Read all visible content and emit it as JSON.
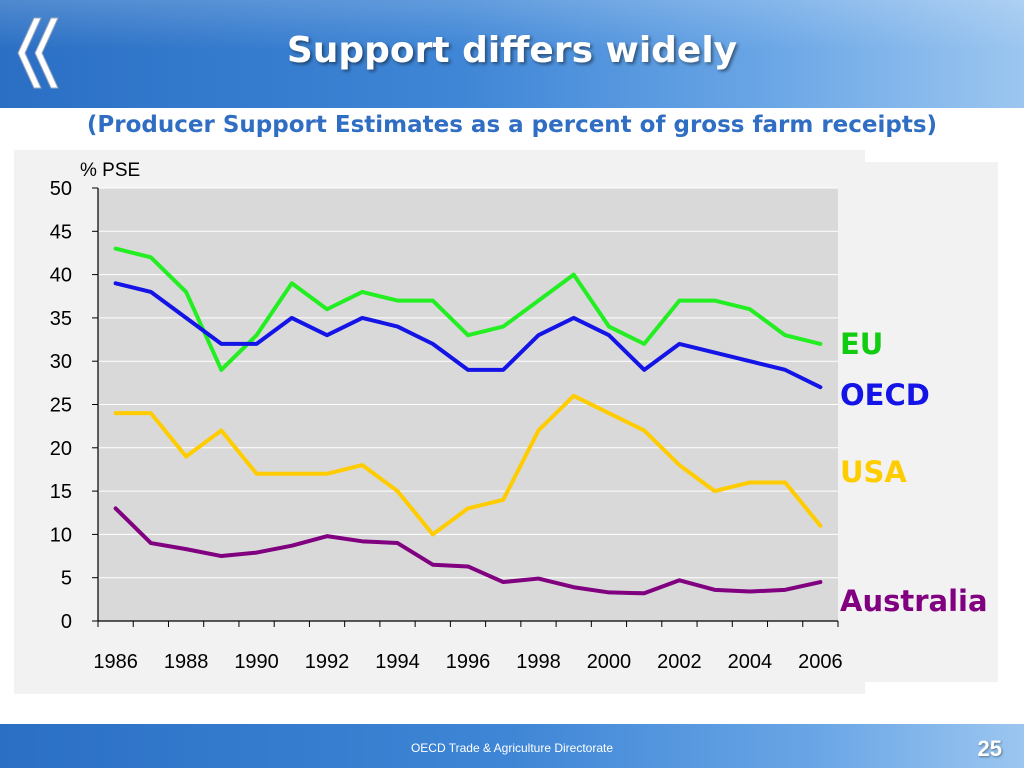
{
  "header": {
    "title": "Support differs widely",
    "subtitle": "(Producer Support Estimates as a percent of gross farm receipts)",
    "logo": "oecd-chevrons-logo"
  },
  "footer": {
    "text": "OECD Trade & Agriculture Directorate",
    "page_number": "25"
  },
  "chart_data": {
    "type": "line",
    "title": "",
    "xlabel": "",
    "ylabel": "% PSE",
    "x": [
      1986,
      1987,
      1988,
      1989,
      1990,
      1991,
      1992,
      1993,
      1994,
      1995,
      1996,
      1997,
      1998,
      1999,
      2000,
      2001,
      2002,
      2003,
      2004,
      2005,
      2006
    ],
    "x_tick_labels": [
      "1986",
      "1988",
      "1990",
      "1992",
      "1994",
      "1996",
      "1998",
      "2000",
      "2002",
      "2004",
      "2006"
    ],
    "y_tick_labels": [
      "0",
      "5",
      "10",
      "15",
      "20",
      "25",
      "30",
      "35",
      "40",
      "45",
      "50"
    ],
    "ylim": [
      0,
      50
    ],
    "grid": "horizontal",
    "legend": "labels right of plot",
    "series": [
      {
        "name": "EU",
        "color": "#22ee22",
        "values": [
          43,
          42,
          38,
          29,
          33,
          39,
          36,
          38,
          37,
          37,
          33,
          34,
          37,
          40,
          34,
          32,
          37,
          37,
          36,
          33,
          32
        ]
      },
      {
        "name": "OECD",
        "color": "#1414e6",
        "values": [
          39,
          38,
          35,
          32,
          32,
          35,
          33,
          35,
          34,
          32,
          29,
          29,
          33,
          35,
          33,
          29,
          32,
          31,
          30,
          29,
          27
        ]
      },
      {
        "name": "USA",
        "color": "#ffcc00",
        "values": [
          24,
          24,
          19,
          22,
          17,
          17,
          17,
          18,
          15,
          10,
          13,
          14,
          22,
          26,
          24,
          22,
          18,
          15,
          16,
          16,
          11
        ]
      },
      {
        "name": "Australia",
        "color": "#800080",
        "values": [
          13,
          9,
          8.3,
          7.5,
          7.9,
          8.7,
          9.8,
          9.2,
          9,
          6.5,
          6.3,
          4.5,
          4.9,
          3.9,
          3.3,
          3.2,
          4.7,
          3.6,
          3.4,
          3.6,
          4.5
        ]
      }
    ]
  }
}
